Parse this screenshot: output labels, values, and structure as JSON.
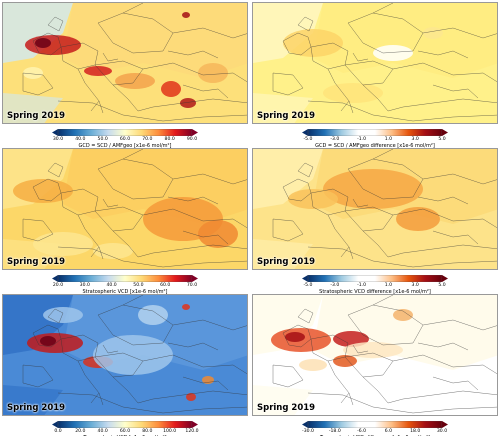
{
  "panels": [
    {
      "id": "top-left",
      "season": "Spring 2019",
      "colorbar": {
        "label": "GCD = SCD / AMFgeo  [x1e-6 mol/m²]",
        "type": "sequential",
        "ticks": [
          "30.0",
          "40.0",
          "50.0",
          "60.0",
          "70.0",
          "80.0",
          "90.0"
        ]
      }
    },
    {
      "id": "top-right",
      "season": "Spring 2019",
      "colorbar": {
        "label": "GCD = SCD / AMFgeo  difference  [x1e-6 mol/m²]",
        "type": "diverging",
        "ticks": [
          "-5.0",
          "-3.0",
          "-1.0",
          "1.0",
          "3.0",
          "5.0"
        ]
      }
    },
    {
      "id": "middle-left",
      "season": "Spring 2019",
      "colorbar": {
        "label": "Stratospheric VCD  [x1e-6 mol/m²]",
        "type": "sequential",
        "ticks": [
          "20.0",
          "30.0",
          "40.0",
          "50.0",
          "60.0",
          "70.0"
        ]
      }
    },
    {
      "id": "middle-right",
      "season": "Spring 2019",
      "colorbar": {
        "label": "Stratospheric VCD  difference  [x1e-6 mol/m²]",
        "type": "diverging",
        "ticks": [
          "-5.0",
          "-3.0",
          "-1.0",
          "1.0",
          "3.0",
          "5.0"
        ]
      }
    },
    {
      "id": "bottom-left",
      "season": "Spring 2019",
      "colorbar": {
        "label": "Tropospheric VCD  [x1e-6 mol/m²]",
        "type": "sequential",
        "ticks": [
          "0.0",
          "20.0",
          "40.0",
          "60.0",
          "80.0",
          "100.0",
          "120.0"
        ]
      }
    },
    {
      "id": "bottom-right",
      "season": "Spring 2019",
      "colorbar": {
        "label": "Tropospheric VCD  difference  [x1e-6 mol/m²]",
        "type": "diverging",
        "ticks": [
          "-30.0",
          "-18.0",
          "-6.0",
          "6.0",
          "18.0",
          "30.0"
        ]
      }
    }
  ],
  "colors": {
    "sequential": [
      "#08306b",
      "#2171b5",
      "#6baed6",
      "#c6dbef",
      "#ffffcc",
      "#fed976",
      "#fd8d3c",
      "#e31a1c",
      "#800026"
    ],
    "diverging": [
      "#08306b",
      "#2171b5",
      "#9ecae1",
      "#ffffff",
      "#ffffff",
      "#fdbe85",
      "#e6550d",
      "#a50f15",
      "#67000d"
    ]
  }
}
